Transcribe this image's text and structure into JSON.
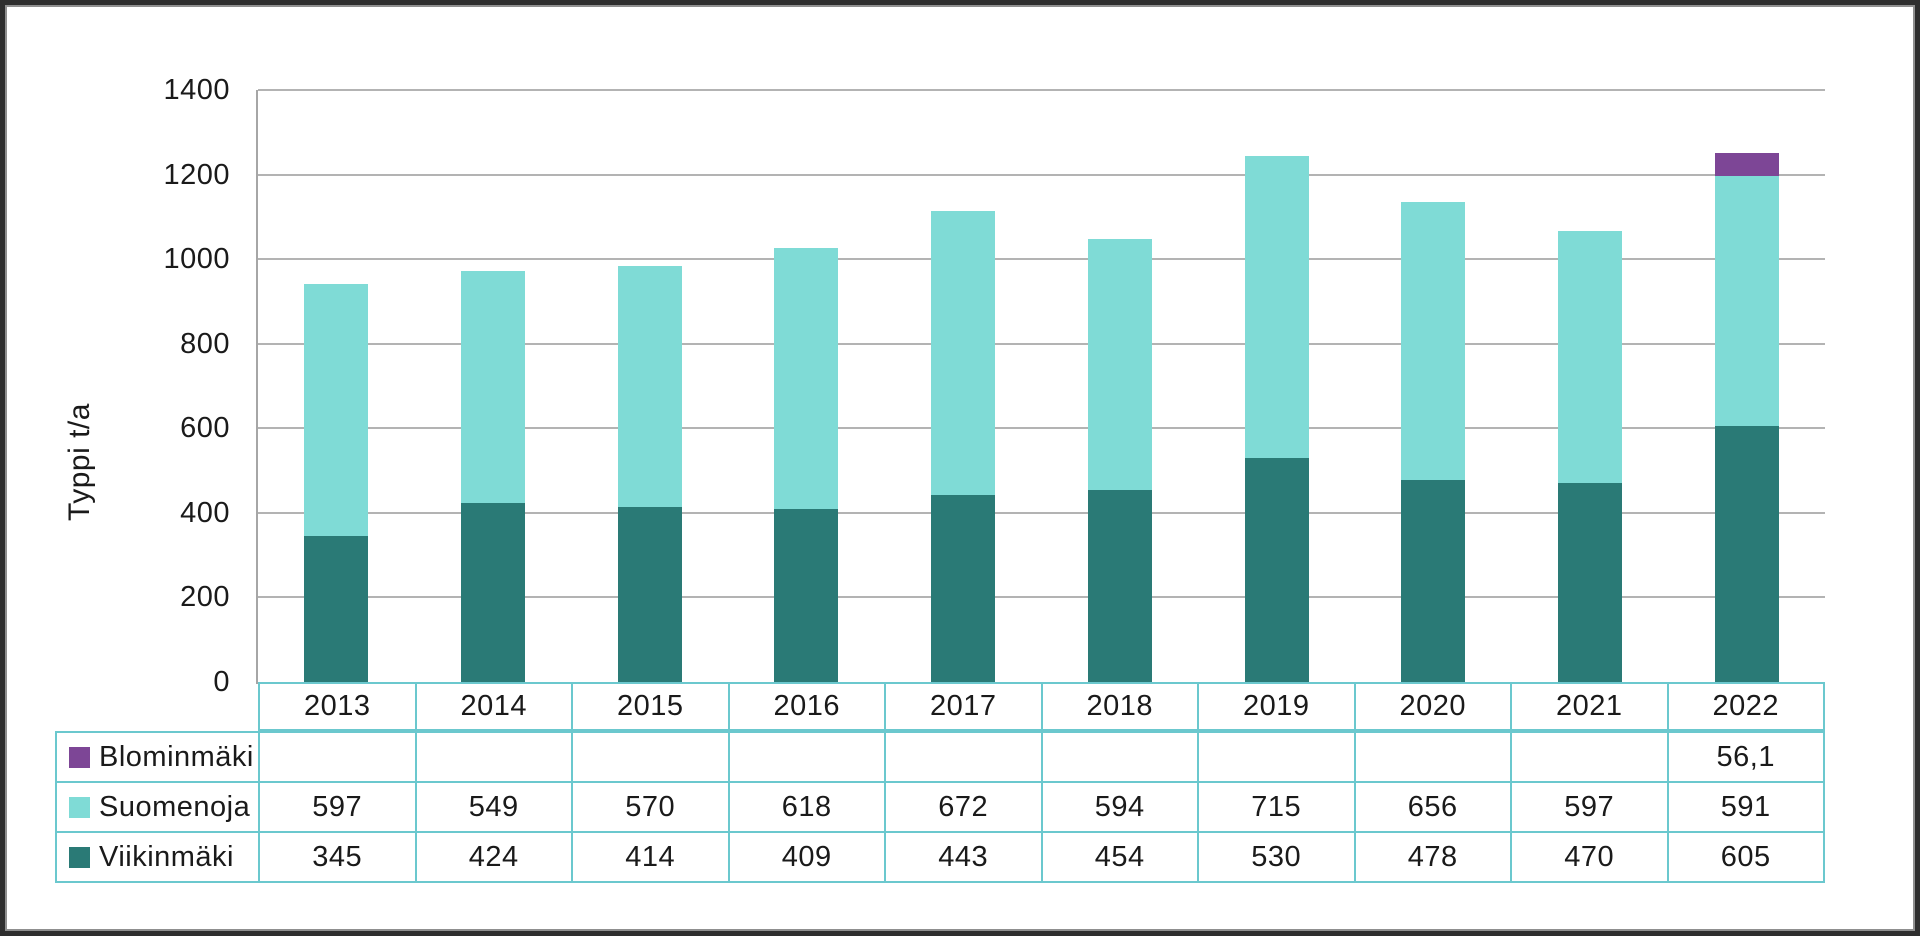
{
  "chart_data": {
    "type": "bar",
    "stacked": true,
    "title": "",
    "xlabel": "",
    "ylabel": "Typpi t/a",
    "ylim": [
      0,
      1400
    ],
    "ytick_step": 200,
    "y_ticks": [
      "0",
      "200",
      "400",
      "600",
      "800",
      "1000",
      "1200",
      "1400"
    ],
    "grid": "horizontal",
    "legend_position": "table-below",
    "categories": [
      "2013",
      "2014",
      "2015",
      "2016",
      "2017",
      "2018",
      "2019",
      "2020",
      "2021",
      "2022"
    ],
    "series": [
      {
        "key": "viikinmaki",
        "name": "Viikinmäki",
        "color": "#2a7a76",
        "values": [
          345,
          424,
          414,
          409,
          443,
          454,
          530,
          478,
          470,
          605
        ]
      },
      {
        "key": "suomenoja",
        "name": "Suomenoja",
        "color": "#7fdbd6",
        "values": [
          597,
          549,
          570,
          618,
          672,
          594,
          715,
          656,
          597,
          591
        ]
      },
      {
        "key": "blominmaki",
        "name": "Blominmäki",
        "color": "#7d4696",
        "values": [
          null,
          null,
          null,
          null,
          null,
          null,
          null,
          null,
          null,
          56.1
        ]
      }
    ],
    "stack_order_bottom_to_top": [
      "Viikinmäki",
      "Suomenoja",
      "Blominmäki"
    ]
  },
  "table": {
    "rows": [
      {
        "key": "blominmaki",
        "label": "Blominmäki",
        "swatch_color": "#7d4696",
        "cells": [
          "",
          "",
          "",
          "",
          "",
          "",
          "",
          "",
          "",
          "56,1"
        ]
      },
      {
        "key": "suomenoja",
        "label": "Suomenoja",
        "swatch_color": "#7fdbd6",
        "cells": [
          "597",
          "549",
          "570",
          "618",
          "672",
          "594",
          "715",
          "656",
          "597",
          "591"
        ]
      },
      {
        "key": "viikinmaki",
        "label": "Viikinmäki",
        "swatch_color": "#2a7a76",
        "cells": [
          "345",
          "424",
          "414",
          "409",
          "443",
          "454",
          "530",
          "478",
          "470",
          "605"
        ]
      }
    ]
  },
  "colors": {
    "table_border": "#6bc8ce",
    "gridline": "#b3b3b3",
    "axis_line": "#a6a6a6",
    "text": "#1a1a1a",
    "background": "#ffffff"
  }
}
